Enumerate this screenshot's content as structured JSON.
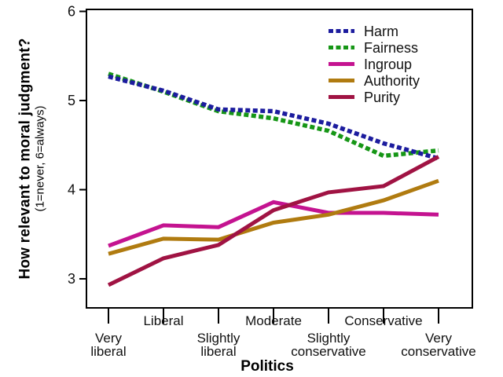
{
  "chart": {
    "y_title": "How relevant to moral judgment?",
    "y_subtitle": "(1=never, 6=always)",
    "x_title": "Politics",
    "y_tick_labels": [
      "6",
      "5",
      "4",
      "3"
    ],
    "background_color": "#ffffff",
    "frame_color": "#000000",
    "text_color": "#111111"
  },
  "chart_data": {
    "type": "line",
    "title": "",
    "xlabel": "Politics",
    "ylabel": "How relevant to moral judgment? (1=never, 6=always)",
    "ylim": [
      2.7,
      6
    ],
    "y_ticks": [
      3,
      4,
      5,
      6
    ],
    "grid": false,
    "legend_position": "top-right-inside",
    "categories": [
      "Very liberal",
      "Liberal",
      "Slightly liberal",
      "Moderate",
      "Slightly conservative",
      "Conservative",
      "Very conservative"
    ],
    "series": [
      {
        "name": "Harm",
        "color": "#1c1c9e",
        "line_style": "dashed",
        "values": [
          5.27,
          5.11,
          4.9,
          4.88,
          4.74,
          4.52,
          4.35
        ]
      },
      {
        "name": "Fairness",
        "color": "#169616",
        "line_style": "dashed",
        "values": [
          5.3,
          5.1,
          4.88,
          4.8,
          4.66,
          4.38,
          4.44
        ]
      },
      {
        "name": "Ingroup",
        "color": "#c41390",
        "line_style": "solid",
        "values": [
          3.37,
          3.6,
          3.58,
          3.86,
          3.74,
          3.74,
          3.72
        ]
      },
      {
        "name": "Authority",
        "color": "#b07b10",
        "line_style": "solid",
        "values": [
          3.28,
          3.45,
          3.44,
          3.63,
          3.72,
          3.88,
          4.1
        ]
      },
      {
        "name": "Purity",
        "color": "#a01343",
        "line_style": "solid",
        "values": [
          2.93,
          3.23,
          3.38,
          3.77,
          3.97,
          4.04,
          4.37
        ]
      }
    ]
  }
}
